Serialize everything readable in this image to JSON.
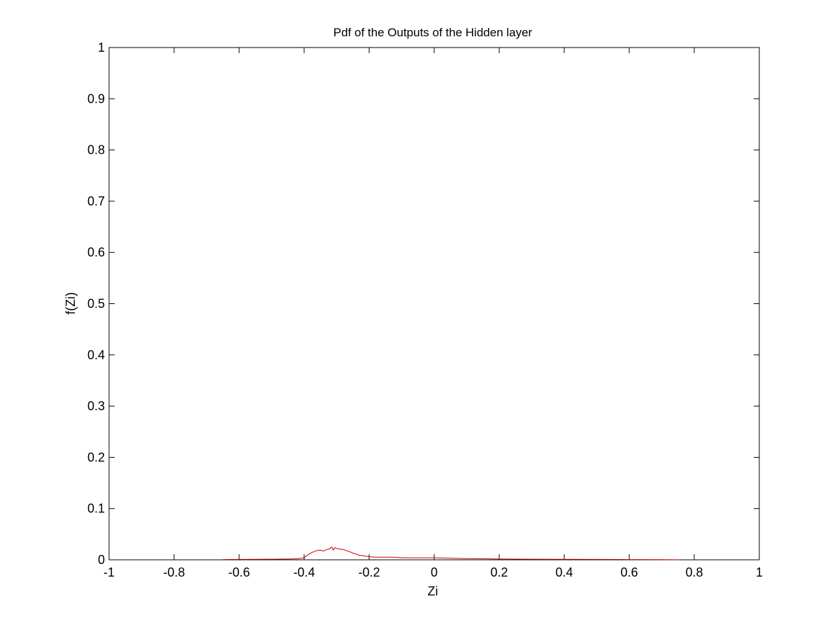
{
  "chart_data": {
    "type": "line",
    "title": "Pdf of the Outputs of the Hidden layer",
    "xlabel": "Zi",
    "ylabel": "f(Zi)",
    "xlim": [
      -1,
      1
    ],
    "ylim": [
      0,
      1
    ],
    "x_ticks": [
      -1,
      -0.8,
      -0.6,
      -0.4,
      -0.2,
      0,
      0.2,
      0.4,
      0.6,
      0.8,
      1
    ],
    "x_tick_labels": [
      "-1",
      "-0.8",
      "-0.6",
      "-0.4",
      "-0.2",
      "0",
      "0.2",
      "0.4",
      "0.6",
      "0.8",
      "1"
    ],
    "y_ticks": [
      0,
      0.1,
      0.2,
      0.3,
      0.4,
      0.5,
      0.6,
      0.7,
      0.8,
      0.9,
      1
    ],
    "y_tick_labels": [
      "0",
      "0.1",
      "0.2",
      "0.3",
      "0.4",
      "0.5",
      "0.6",
      "0.7",
      "0.8",
      "0.9",
      "1"
    ],
    "grid": false,
    "series": [
      {
        "color": "#cc0000",
        "x": [
          -0.65,
          -0.6,
          -0.55,
          -0.5,
          -0.45,
          -0.42,
          -0.4,
          -0.39,
          -0.38,
          -0.37,
          -0.36,
          -0.35,
          -0.34,
          -0.33,
          -0.32,
          -0.315,
          -0.31,
          -0.305,
          -0.3,
          -0.29,
          -0.28,
          -0.27,
          -0.26,
          -0.25,
          -0.24,
          -0.23,
          -0.22,
          -0.2,
          -0.18,
          -0.15,
          -0.12,
          -0.1,
          -0.05,
          0,
          0.05,
          0.1,
          0.15,
          0.2,
          0.3,
          0.4,
          0.5,
          0.6,
          0.7,
          0.75
        ],
        "y": [
          0.0005,
          0.0008,
          0.001,
          0.0012,
          0.0015,
          0.002,
          0.004,
          0.009,
          0.013,
          0.016,
          0.018,
          0.019,
          0.017,
          0.02,
          0.022,
          0.025,
          0.019,
          0.024,
          0.022,
          0.021,
          0.02,
          0.018,
          0.016,
          0.013,
          0.011,
          0.009,
          0.008,
          0.006,
          0.005,
          0.005,
          0.005,
          0.004,
          0.004,
          0.004,
          0.003,
          0.0025,
          0.002,
          0.0015,
          0.0012,
          0.001,
          0.0008,
          0.0006,
          0.0004,
          0.0002
        ]
      }
    ]
  }
}
